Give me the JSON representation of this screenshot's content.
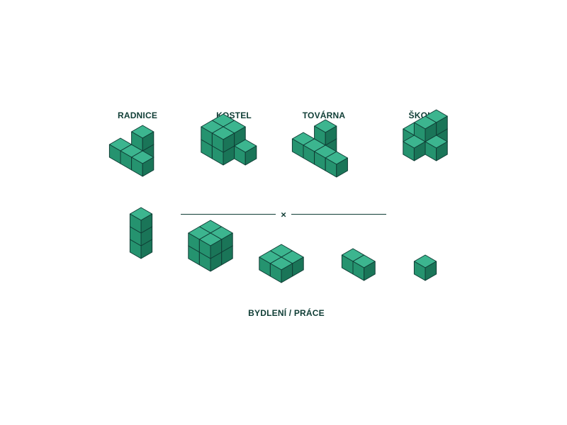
{
  "buildings": {
    "radnice": "RADNICE",
    "kostel": "KOSTEL",
    "tovarna": "TOVÁRNA",
    "skola": "ŠKOLA"
  },
  "divider": {
    "symbol": "×"
  },
  "footer": {
    "caption": "BYDLENÍ / PRÁCE"
  },
  "colors": {
    "top": "#3cb58f",
    "left": "#25936f",
    "right": "#1a7558",
    "edge": "#0f3d35",
    "text": "#0f3d35"
  }
}
